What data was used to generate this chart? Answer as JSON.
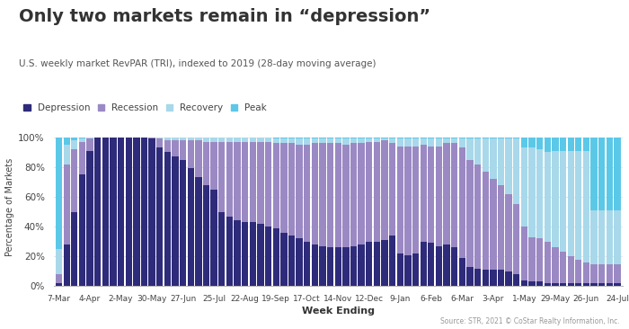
{
  "title": "Only two markets remain in “depression”",
  "subtitle": "U.S. weekly market RevPAR (TRI), indexed to 2019 (28-day moving average)",
  "source": "Source: STR, 2021 © CoStar Realty Information, Inc.",
  "xlabel": "Week Ending",
  "ylabel": "Percentage of Markets",
  "legend_labels": [
    "Depression",
    "Recession",
    "Recovery",
    "Peak"
  ],
  "colors": {
    "depression": "#2e2b7a",
    "recession": "#9b89c4",
    "recovery": "#a8d8ea",
    "peak": "#5bc8e8"
  },
  "x_tick_labels": [
    "7-Mar",
    "4-Apr",
    "2-May",
    "30-May",
    "27-Jun",
    "25-Jul",
    "22-Aug",
    "19-Sep",
    "17-Oct",
    "14-Nov",
    "12-Dec",
    "9-Jan",
    "6-Feb",
    "6-Mar",
    "3-Apr",
    "1-May",
    "29-May",
    "26-Jun",
    "24-Jul"
  ],
  "tick_positions": [
    0,
    4,
    8,
    12,
    16,
    20,
    24,
    28,
    32,
    36,
    40,
    44,
    48,
    52,
    56,
    60,
    64,
    68,
    72
  ],
  "weekly_data": [
    [
      2,
      6,
      17,
      75
    ],
    [
      28,
      54,
      13,
      5
    ],
    [
      50,
      42,
      6,
      2
    ],
    [
      75,
      22,
      2,
      1
    ],
    [
      91,
      8,
      1,
      0
    ],
    [
      100,
      0,
      0,
      0
    ],
    [
      100,
      0,
      0,
      0
    ],
    [
      100,
      0,
      0,
      0
    ],
    [
      100,
      0,
      0,
      0
    ],
    [
      100,
      0,
      0,
      0
    ],
    [
      100,
      0,
      0,
      0
    ],
    [
      100,
      0,
      0,
      0
    ],
    [
      99,
      1,
      0,
      0
    ],
    [
      93,
      6,
      1,
      0
    ],
    [
      90,
      8,
      2,
      0
    ],
    [
      87,
      11,
      2,
      0
    ],
    [
      85,
      13,
      2,
      0
    ],
    [
      79,
      19,
      2,
      0
    ],
    [
      73,
      25,
      2,
      0
    ],
    [
      68,
      29,
      3,
      0
    ],
    [
      65,
      32,
      3,
      0
    ],
    [
      50,
      47,
      3,
      0
    ],
    [
      47,
      50,
      3,
      0
    ],
    [
      44,
      53,
      3,
      0
    ],
    [
      43,
      54,
      3,
      0
    ],
    [
      43,
      54,
      3,
      0
    ],
    [
      42,
      55,
      3,
      0
    ],
    [
      40,
      57,
      3,
      0
    ],
    [
      39,
      57,
      3,
      1
    ],
    [
      36,
      60,
      3,
      1
    ],
    [
      34,
      62,
      3,
      1
    ],
    [
      32,
      63,
      4,
      1
    ],
    [
      30,
      65,
      4,
      1
    ],
    [
      28,
      68,
      3,
      1
    ],
    [
      27,
      69,
      3,
      1
    ],
    [
      26,
      70,
      3,
      1
    ],
    [
      26,
      70,
      3,
      1
    ],
    [
      26,
      69,
      4,
      1
    ],
    [
      27,
      69,
      3,
      1
    ],
    [
      28,
      68,
      3,
      1
    ],
    [
      30,
      67,
      2,
      1
    ],
    [
      30,
      67,
      2,
      1
    ],
    [
      31,
      67,
      1,
      1
    ],
    [
      34,
      62,
      3,
      1
    ],
    [
      22,
      72,
      5,
      1
    ],
    [
      21,
      73,
      5,
      1
    ],
    [
      22,
      72,
      5,
      1
    ],
    [
      30,
      65,
      4,
      1
    ],
    [
      29,
      65,
      5,
      1
    ],
    [
      27,
      67,
      5,
      1
    ],
    [
      28,
      68,
      3,
      1
    ],
    [
      26,
      70,
      3,
      1
    ],
    [
      19,
      74,
      6,
      1
    ],
    [
      13,
      72,
      14,
      1
    ],
    [
      12,
      70,
      17,
      1
    ],
    [
      11,
      66,
      22,
      1
    ],
    [
      11,
      61,
      27,
      1
    ],
    [
      11,
      57,
      31,
      1
    ],
    [
      10,
      52,
      37,
      1
    ],
    [
      8,
      47,
      44,
      1
    ],
    [
      4,
      36,
      53,
      7
    ],
    [
      3,
      30,
      60,
      7
    ],
    [
      3,
      29,
      60,
      8
    ],
    [
      2,
      28,
      60,
      10
    ],
    [
      2,
      24,
      65,
      9
    ],
    [
      2,
      21,
      68,
      9
    ],
    [
      2,
      18,
      71,
      9
    ],
    [
      2,
      16,
      73,
      9
    ],
    [
      2,
      14,
      75,
      9
    ],
    [
      2,
      13,
      36,
      49
    ],
    [
      2,
      13,
      36,
      49
    ],
    [
      2,
      13,
      36,
      49
    ],
    [
      2,
      13,
      36,
      49
    ]
  ],
  "background_color": "#ffffff",
  "bar_width": 0.85
}
